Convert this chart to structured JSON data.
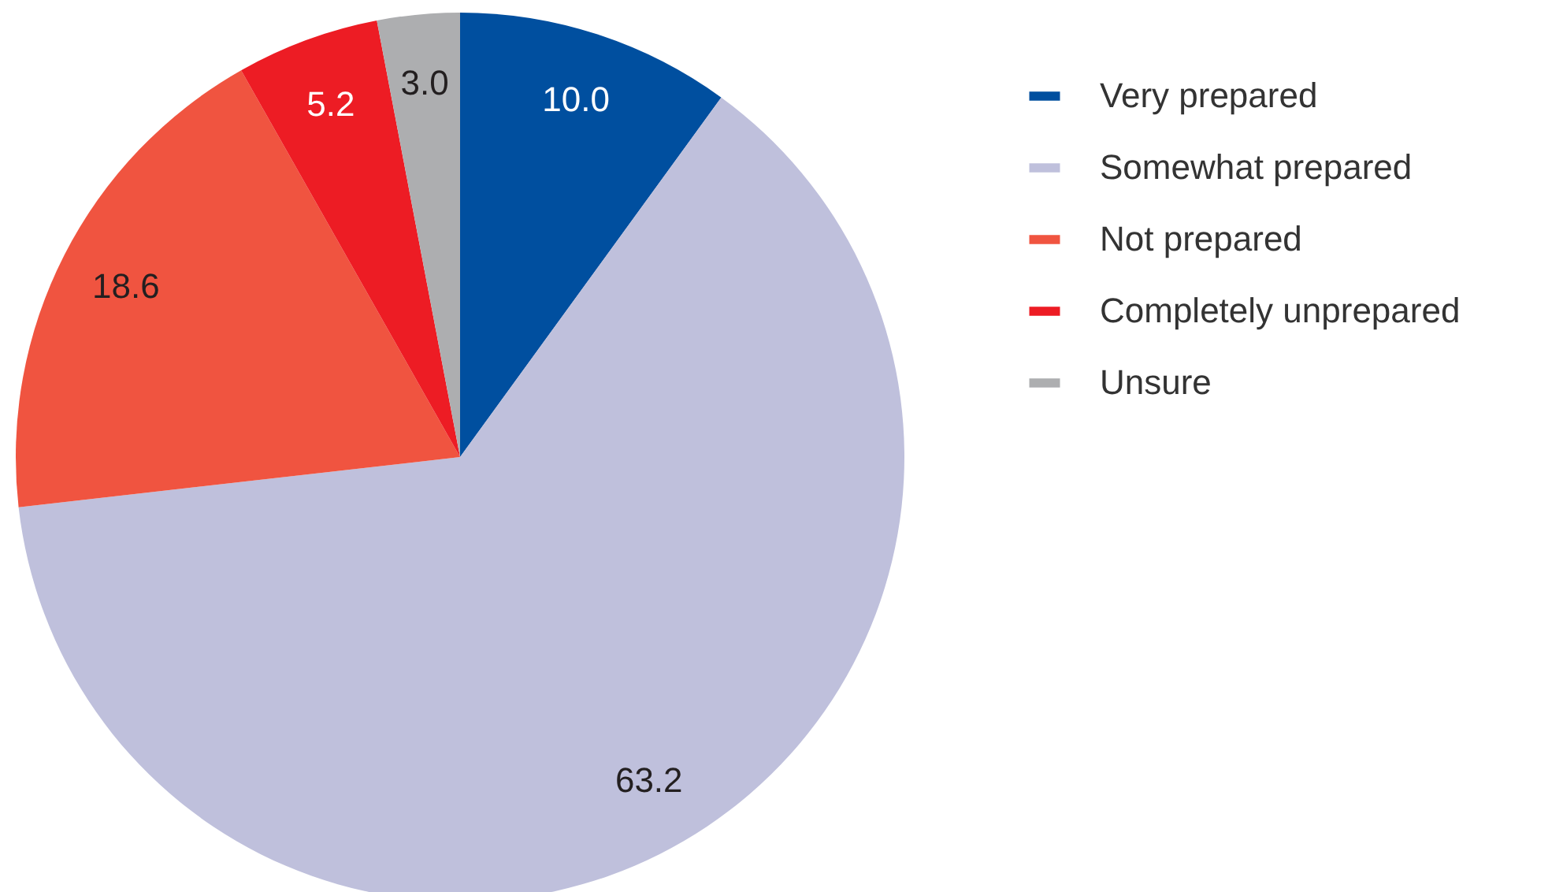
{
  "chart_data": {
    "type": "pie",
    "categories": [
      "Very prepared",
      "Somewhat prepared",
      "Not prepared",
      "Completely unprepared",
      "Unsure"
    ],
    "values": [
      10.0,
      63.2,
      18.6,
      5.2,
      3.0
    ],
    "value_labels": [
      "10.0",
      "63.2",
      "18.6",
      "5.2",
      "3.0"
    ],
    "colors": [
      "#004f9f",
      "#bfc0dc",
      "#f05440",
      "#ed1c24",
      "#adaeb0"
    ],
    "legend": "top right"
  }
}
